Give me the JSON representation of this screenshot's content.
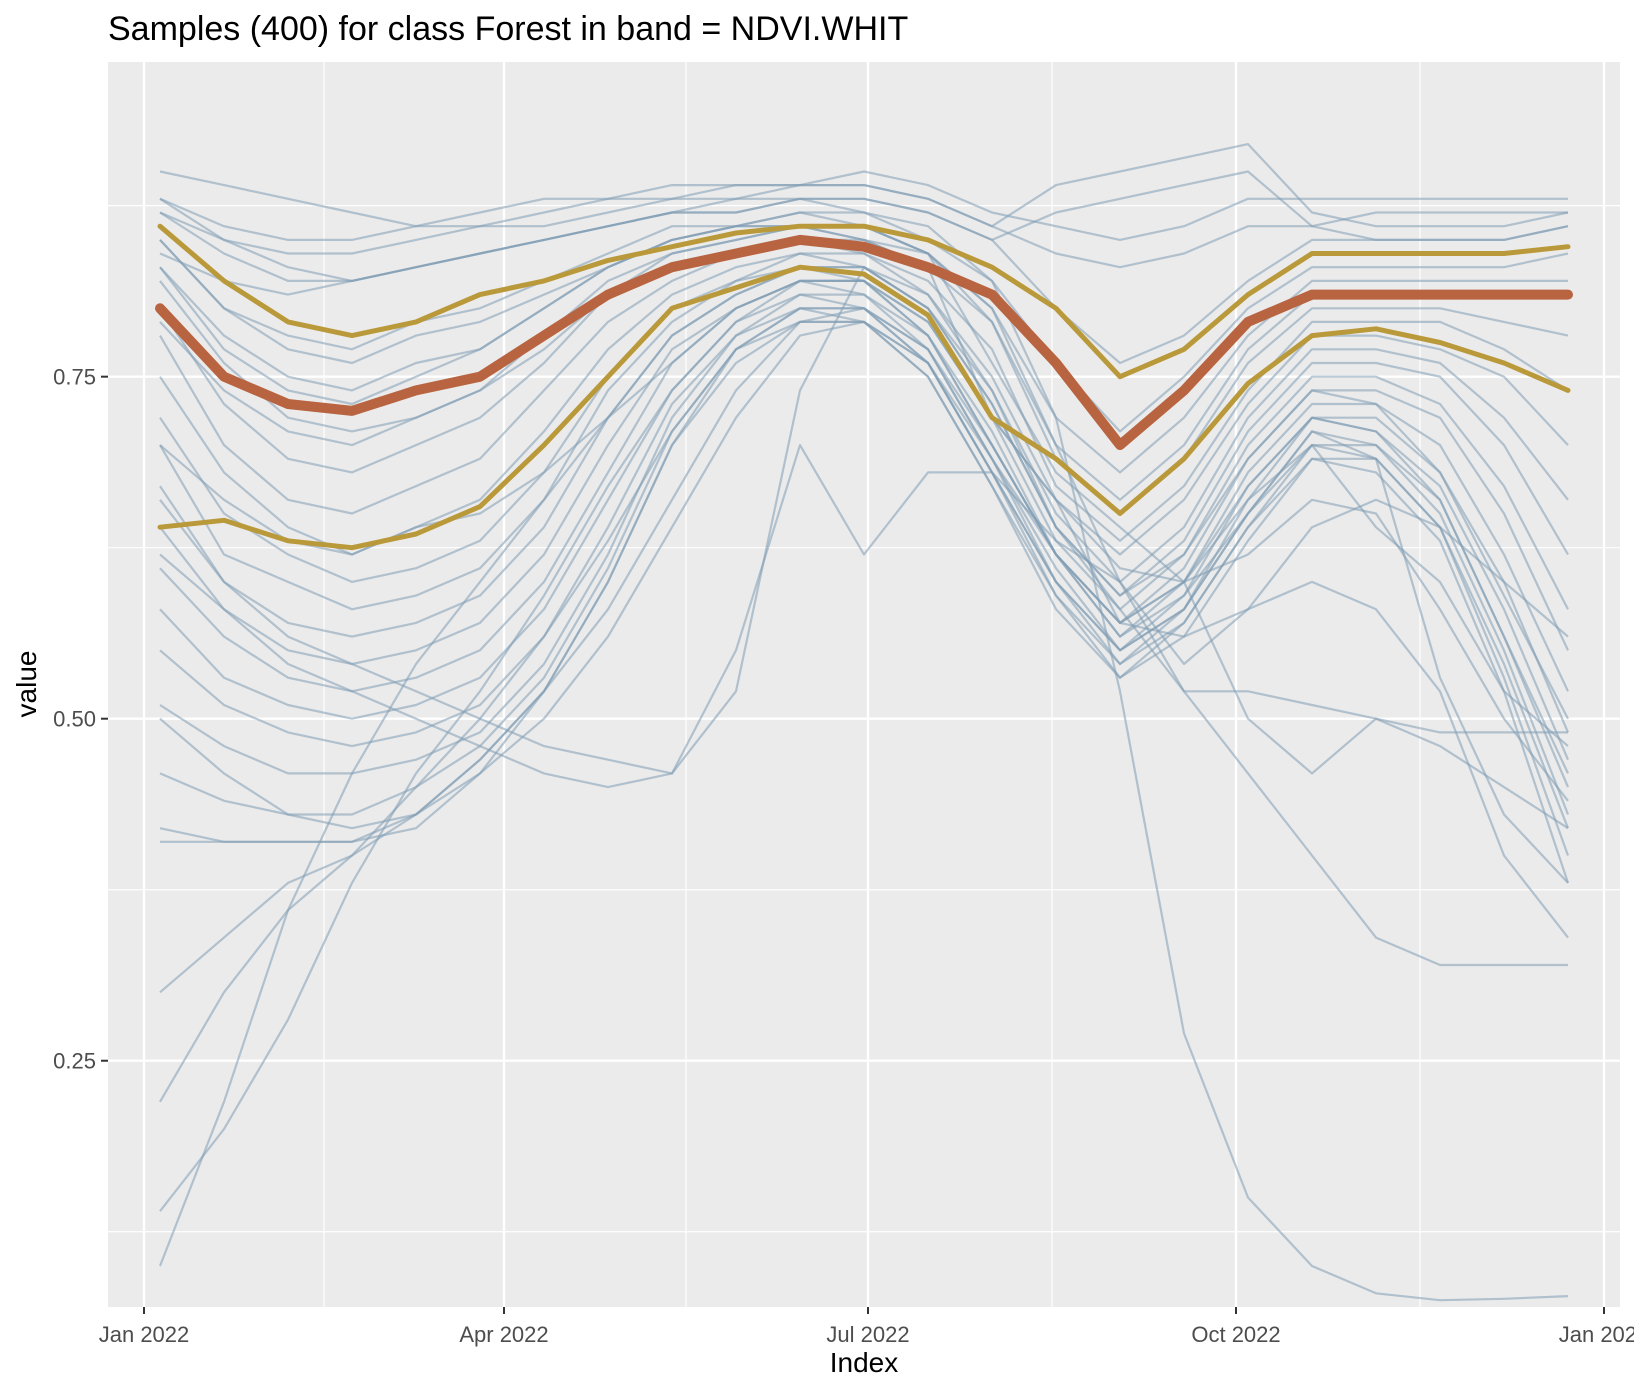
{
  "chart_data": {
    "type": "line",
    "title": "Samples (400) for class Forest in band = NDVI.WHIT",
    "xlabel": "Index",
    "ylabel": "value",
    "x_type": "date",
    "xlim": [
      "2021-12-23",
      "2023-01-05"
    ],
    "ylim": [
      0.07,
      0.98
    ],
    "x_ticks": [
      {
        "date": "2022-01-01",
        "label": "Jan 2022"
      },
      {
        "date": "2022-04-01",
        "label": "Apr 2022"
      },
      {
        "date": "2022-07-01",
        "label": "Jul 2022"
      },
      {
        "date": "2022-10-01",
        "label": "Oct 2022"
      },
      {
        "date": "2023-01-01",
        "label": "Jan 2023"
      }
    ],
    "y_ticks": [
      {
        "value": 0.25,
        "label": "0.25"
      },
      {
        "value": 0.5,
        "label": "0.50"
      },
      {
        "value": 0.75,
        "label": "0.75"
      }
    ],
    "grid": true,
    "legend": "none",
    "x": [
      "2022-01-05",
      "2022-01-21",
      "2022-02-06",
      "2022-02-22",
      "2022-03-10",
      "2022-03-26",
      "2022-04-11",
      "2022-04-27",
      "2022-05-13",
      "2022-05-29",
      "2022-06-14",
      "2022-06-30",
      "2022-07-16",
      "2022-08-01",
      "2022-08-17",
      "2022-09-02",
      "2022-09-18",
      "2022-10-04",
      "2022-10-20",
      "2022-11-05",
      "2022-11-21",
      "2022-12-07",
      "2022-12-23"
    ],
    "series": [
      {
        "role": "mean",
        "color": "#b86440",
        "values": [
          0.8,
          0.75,
          0.73,
          0.725,
          0.74,
          0.75,
          0.78,
          0.81,
          0.83,
          0.84,
          0.85,
          0.845,
          0.83,
          0.81,
          0.76,
          0.7,
          0.74,
          0.79,
          0.81,
          0.81,
          0.81,
          0.81,
          0.81
        ]
      },
      {
        "role": "upper quartile",
        "color": "#b9993a",
        "values": [
          0.86,
          0.82,
          0.79,
          0.78,
          0.79,
          0.81,
          0.82,
          0.835,
          0.845,
          0.855,
          0.86,
          0.86,
          0.85,
          0.83,
          0.8,
          0.75,
          0.77,
          0.81,
          0.84,
          0.84,
          0.84,
          0.84,
          0.845
        ]
      },
      {
        "role": "lower quartile",
        "color": "#b9993a",
        "values": [
          0.64,
          0.645,
          0.63,
          0.625,
          0.635,
          0.655,
          0.7,
          0.75,
          0.8,
          0.815,
          0.83,
          0.825,
          0.795,
          0.72,
          0.69,
          0.65,
          0.69,
          0.745,
          0.78,
          0.785,
          0.775,
          0.76,
          0.74
        ]
      }
    ],
    "sample_count": 400,
    "sample_color": "#7f9cb4",
    "samples": [
      [
        0.9,
        0.89,
        0.88,
        0.87,
        0.86,
        0.87,
        0.88,
        0.88,
        0.89,
        0.89,
        0.89,
        0.9,
        0.89,
        0.87,
        0.86,
        0.85,
        0.86,
        0.88,
        0.88,
        0.88,
        0.88,
        0.88,
        0.88
      ],
      [
        0.88,
        0.86,
        0.85,
        0.85,
        0.86,
        0.86,
        0.87,
        0.88,
        0.88,
        0.89,
        0.89,
        0.89,
        0.88,
        0.86,
        0.84,
        0.83,
        0.84,
        0.86,
        0.86,
        0.87,
        0.87,
        0.87,
        0.87
      ],
      [
        0.87,
        0.84,
        0.82,
        0.82,
        0.83,
        0.84,
        0.85,
        0.86,
        0.87,
        0.87,
        0.88,
        0.88,
        0.87,
        0.85,
        0.8,
        0.76,
        0.78,
        0.82,
        0.85,
        0.85,
        0.85,
        0.85,
        0.86
      ],
      [
        0.85,
        0.8,
        0.78,
        0.77,
        0.79,
        0.8,
        0.82,
        0.84,
        0.86,
        0.86,
        0.87,
        0.87,
        0.85,
        0.82,
        0.76,
        0.71,
        0.75,
        0.8,
        0.83,
        0.83,
        0.83,
        0.83,
        0.84
      ],
      [
        0.83,
        0.77,
        0.74,
        0.73,
        0.75,
        0.77,
        0.8,
        0.83,
        0.85,
        0.86,
        0.87,
        0.86,
        0.84,
        0.8,
        0.72,
        0.68,
        0.72,
        0.78,
        0.82,
        0.82,
        0.82,
        0.82,
        0.82
      ],
      [
        0.82,
        0.76,
        0.72,
        0.71,
        0.72,
        0.74,
        0.78,
        0.82,
        0.84,
        0.85,
        0.86,
        0.85,
        0.84,
        0.8,
        0.7,
        0.66,
        0.7,
        0.77,
        0.81,
        0.81,
        0.81,
        0.81,
        0.81
      ],
      [
        0.8,
        0.73,
        0.69,
        0.68,
        0.7,
        0.72,
        0.76,
        0.81,
        0.83,
        0.84,
        0.85,
        0.85,
        0.83,
        0.79,
        0.69,
        0.65,
        0.69,
        0.76,
        0.8,
        0.8,
        0.8,
        0.79,
        0.78
      ],
      [
        0.78,
        0.7,
        0.66,
        0.65,
        0.67,
        0.69,
        0.74,
        0.79,
        0.82,
        0.84,
        0.85,
        0.84,
        0.82,
        0.77,
        0.67,
        0.63,
        0.67,
        0.74,
        0.79,
        0.79,
        0.79,
        0.77,
        0.74
      ],
      [
        0.75,
        0.68,
        0.64,
        0.62,
        0.64,
        0.66,
        0.71,
        0.77,
        0.81,
        0.83,
        0.84,
        0.84,
        0.81,
        0.75,
        0.66,
        0.62,
        0.66,
        0.73,
        0.78,
        0.78,
        0.77,
        0.75,
        0.7
      ],
      [
        0.72,
        0.65,
        0.62,
        0.6,
        0.61,
        0.63,
        0.68,
        0.75,
        0.8,
        0.82,
        0.84,
        0.83,
        0.8,
        0.74,
        0.65,
        0.6,
        0.64,
        0.72,
        0.77,
        0.77,
        0.76,
        0.72,
        0.66
      ],
      [
        0.7,
        0.62,
        0.6,
        0.58,
        0.59,
        0.61,
        0.66,
        0.74,
        0.79,
        0.82,
        0.83,
        0.83,
        0.8,
        0.73,
        0.64,
        0.59,
        0.63,
        0.71,
        0.76,
        0.76,
        0.75,
        0.7,
        0.62
      ],
      [
        0.67,
        0.6,
        0.57,
        0.56,
        0.57,
        0.59,
        0.64,
        0.72,
        0.78,
        0.81,
        0.83,
        0.82,
        0.79,
        0.72,
        0.63,
        0.58,
        0.62,
        0.7,
        0.75,
        0.75,
        0.73,
        0.67,
        0.58
      ],
      [
        0.64,
        0.58,
        0.55,
        0.54,
        0.55,
        0.57,
        0.62,
        0.7,
        0.77,
        0.8,
        0.82,
        0.82,
        0.78,
        0.71,
        0.62,
        0.57,
        0.61,
        0.69,
        0.74,
        0.74,
        0.72,
        0.65,
        0.55
      ],
      [
        0.61,
        0.56,
        0.53,
        0.52,
        0.53,
        0.55,
        0.6,
        0.68,
        0.76,
        0.8,
        0.82,
        0.81,
        0.78,
        0.7,
        0.62,
        0.56,
        0.6,
        0.68,
        0.73,
        0.73,
        0.7,
        0.62,
        0.52
      ],
      [
        0.58,
        0.53,
        0.51,
        0.5,
        0.51,
        0.53,
        0.58,
        0.66,
        0.74,
        0.79,
        0.81,
        0.81,
        0.77,
        0.69,
        0.61,
        0.55,
        0.59,
        0.67,
        0.72,
        0.72,
        0.68,
        0.6,
        0.49
      ],
      [
        0.55,
        0.51,
        0.49,
        0.48,
        0.49,
        0.51,
        0.56,
        0.64,
        0.73,
        0.78,
        0.81,
        0.8,
        0.77,
        0.69,
        0.6,
        0.55,
        0.58,
        0.66,
        0.72,
        0.71,
        0.67,
        0.58,
        0.47
      ],
      [
        0.51,
        0.48,
        0.46,
        0.46,
        0.47,
        0.49,
        0.54,
        0.62,
        0.72,
        0.78,
        0.8,
        0.8,
        0.76,
        0.68,
        0.6,
        0.54,
        0.58,
        0.65,
        0.71,
        0.7,
        0.66,
        0.56,
        0.45
      ],
      [
        0.46,
        0.44,
        0.43,
        0.43,
        0.45,
        0.48,
        0.53,
        0.61,
        0.71,
        0.77,
        0.8,
        0.79,
        0.76,
        0.68,
        0.59,
        0.54,
        0.57,
        0.64,
        0.7,
        0.7,
        0.65,
        0.55,
        0.43
      ],
      [
        0.41,
        0.41,
        0.41,
        0.41,
        0.43,
        0.47,
        0.52,
        0.6,
        0.7,
        0.77,
        0.79,
        0.79,
        0.75,
        0.67,
        0.59,
        0.53,
        0.57,
        0.64,
        0.69,
        0.69,
        0.64,
        0.53,
        0.4
      ],
      [
        0.3,
        0.34,
        0.38,
        0.4,
        0.43,
        0.47,
        0.52,
        0.6,
        0.7,
        0.76,
        0.79,
        0.79,
        0.75,
        0.67,
        0.58,
        0.53,
        0.56,
        0.63,
        0.69,
        0.68,
        0.63,
        0.52,
        0.38
      ],
      [
        0.22,
        0.3,
        0.36,
        0.4,
        0.45,
        0.5,
        0.56,
        0.63,
        0.71,
        0.77,
        0.8,
        0.8,
        0.76,
        0.68,
        0.6,
        0.55,
        0.58,
        0.65,
        0.7,
        0.69,
        0.64,
        0.54,
        0.42
      ],
      [
        0.14,
        0.2,
        0.28,
        0.38,
        0.46,
        0.52,
        0.59,
        0.67,
        0.74,
        0.79,
        0.82,
        0.82,
        0.78,
        0.7,
        0.62,
        0.57,
        0.6,
        0.67,
        0.72,
        0.71,
        0.66,
        0.56,
        0.46
      ],
      [
        0.1,
        0.22,
        0.36,
        0.46,
        0.54,
        0.6,
        0.66,
        0.72,
        0.78,
        0.81,
        0.83,
        0.83,
        0.8,
        0.73,
        0.64,
        0.59,
        0.62,
        0.69,
        0.74,
        0.73,
        0.68,
        0.59,
        0.5
      ],
      [
        0.87,
        0.85,
        0.84,
        0.84,
        0.85,
        0.86,
        0.86,
        0.87,
        0.88,
        0.88,
        0.89,
        0.89,
        0.88,
        0.86,
        0.89,
        0.9,
        0.91,
        0.92,
        0.87,
        0.86,
        0.86,
        0.86,
        0.87
      ],
      [
        0.84,
        0.82,
        0.81,
        0.82,
        0.83,
        0.84,
        0.85,
        0.86,
        0.87,
        0.88,
        0.88,
        0.88,
        0.87,
        0.85,
        0.87,
        0.88,
        0.89,
        0.9,
        0.86,
        0.85,
        0.85,
        0.85,
        0.86
      ],
      [
        0.79,
        0.74,
        0.71,
        0.7,
        0.72,
        0.74,
        0.77,
        0.81,
        0.84,
        0.85,
        0.86,
        0.85,
        0.83,
        0.72,
        0.66,
        0.61,
        0.6,
        0.62,
        0.66,
        0.65,
        0.58,
        0.5,
        0.44
      ],
      [
        0.83,
        0.78,
        0.75,
        0.74,
        0.76,
        0.77,
        0.8,
        0.83,
        0.85,
        0.86,
        0.86,
        0.86,
        0.84,
        0.76,
        0.68,
        0.64,
        0.6,
        0.5,
        0.46,
        0.5,
        0.48,
        0.45,
        0.42
      ],
      [
        0.7,
        0.66,
        0.63,
        0.62,
        0.64,
        0.65,
        0.68,
        0.72,
        0.76,
        0.8,
        0.82,
        0.82,
        0.79,
        0.72,
        0.66,
        0.57,
        0.56,
        0.58,
        0.6,
        0.58,
        0.52,
        0.4,
        0.34
      ],
      [
        0.85,
        0.8,
        0.77,
        0.76,
        0.78,
        0.79,
        0.81,
        0.83,
        0.85,
        0.86,
        0.86,
        0.86,
        0.84,
        0.79,
        0.7,
        0.6,
        0.52,
        0.46,
        0.4,
        0.34,
        0.32,
        0.32,
        0.32
      ],
      [
        0.88,
        0.85,
        0.83,
        0.82,
        0.83,
        0.84,
        0.85,
        0.86,
        0.87,
        0.87,
        0.88,
        0.87,
        0.86,
        0.82,
        0.72,
        0.52,
        0.27,
        0.15,
        0.1,
        0.08,
        0.075,
        0.076,
        0.078
      ],
      [
        0.66,
        0.6,
        0.56,
        0.54,
        0.52,
        0.5,
        0.48,
        0.47,
        0.46,
        0.55,
        0.7,
        0.62,
        0.68,
        0.68,
        0.63,
        0.6,
        0.54,
        0.58,
        0.64,
        0.66,
        0.64,
        0.6,
        0.56
      ],
      [
        0.62,
        0.58,
        0.54,
        0.52,
        0.5,
        0.48,
        0.46,
        0.45,
        0.46,
        0.52,
        0.74,
        0.83,
        0.81,
        0.74,
        0.64,
        0.58,
        0.52,
        0.52,
        0.51,
        0.5,
        0.49,
        0.49,
        0.49
      ],
      [
        0.42,
        0.41,
        0.41,
        0.41,
        0.42,
        0.46,
        0.52,
        0.58,
        0.66,
        0.74,
        0.79,
        0.8,
        0.77,
        0.7,
        0.62,
        0.57,
        0.6,
        0.66,
        0.7,
        0.64,
        0.6,
        0.52,
        0.48
      ],
      [
        0.5,
        0.46,
        0.43,
        0.42,
        0.43,
        0.46,
        0.5,
        0.56,
        0.64,
        0.72,
        0.78,
        0.79,
        0.76,
        0.69,
        0.62,
        0.56,
        0.59,
        0.65,
        0.71,
        0.69,
        0.53,
        0.43,
        0.38
      ]
    ]
  }
}
